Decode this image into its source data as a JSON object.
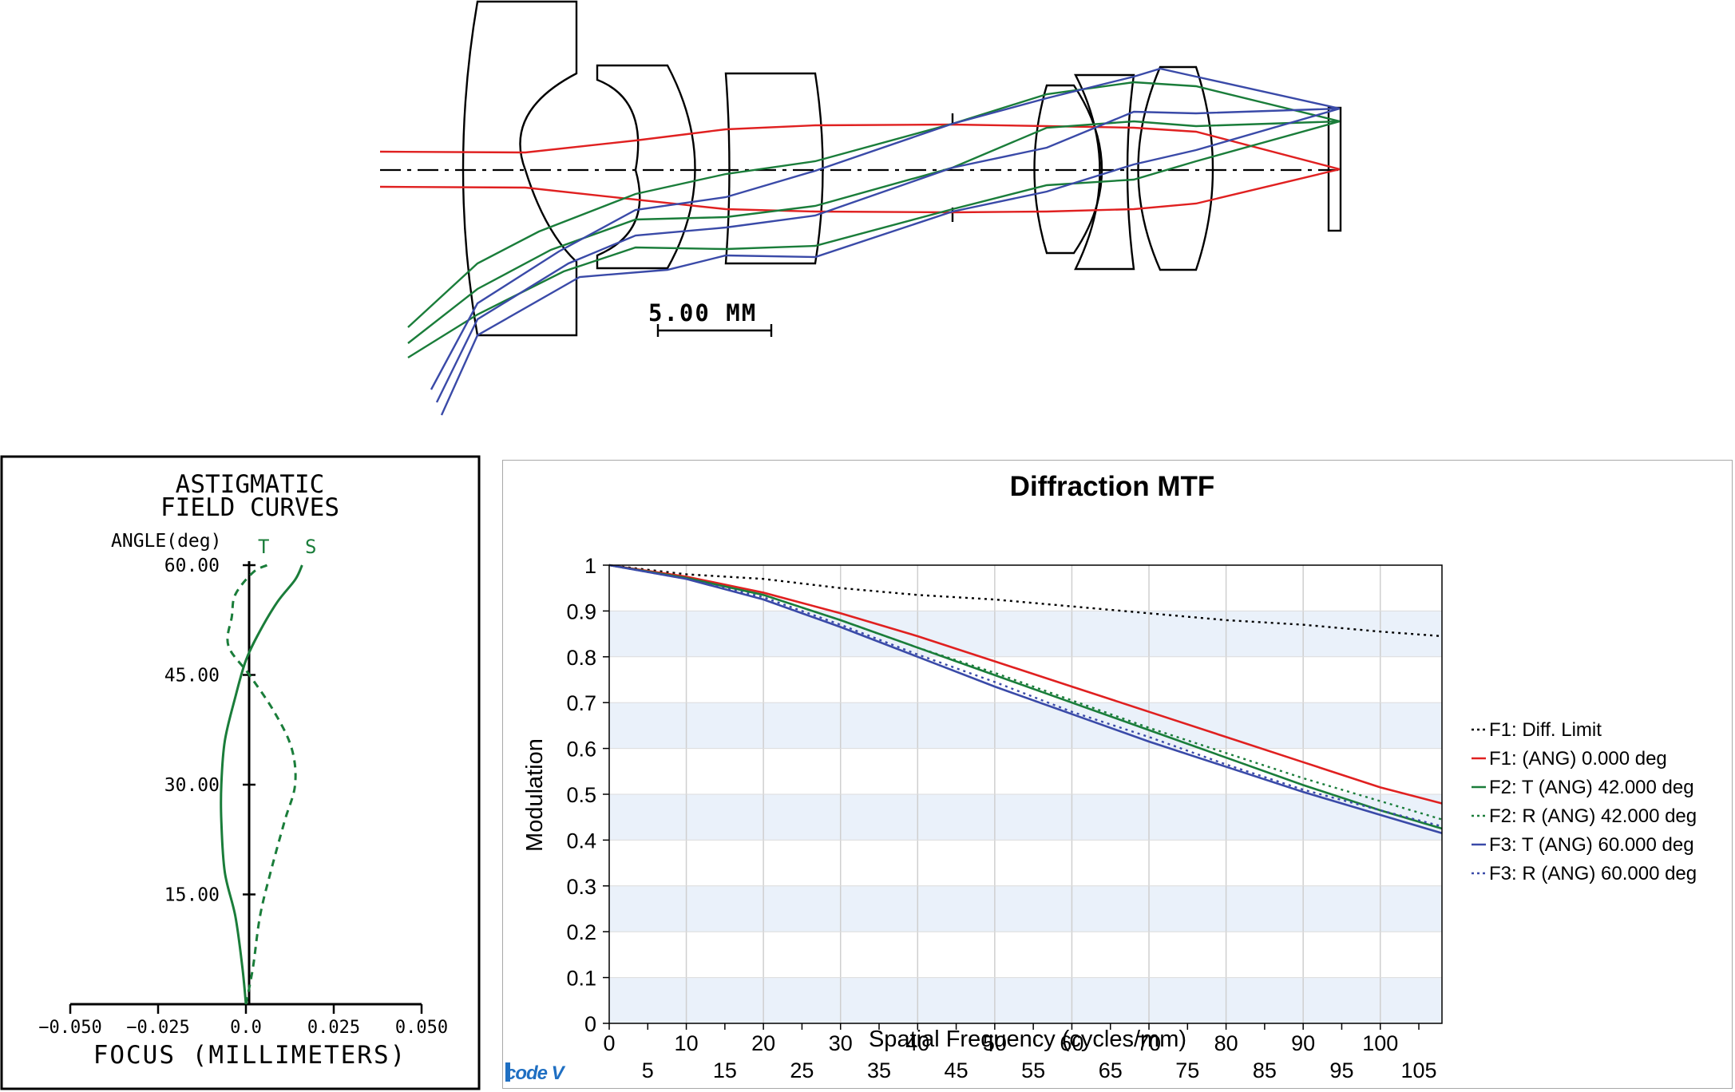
{
  "colors": {
    "red": "#e02020",
    "green": "#1a7d3a",
    "blue": "#3a4aa8",
    "black": "#000000",
    "band": "#eaf1fa",
    "grid": "#cfcfcf",
    "logo": "#1f6fc2"
  },
  "lens_diagram": {
    "scale_label": "5.00 MM"
  },
  "astig": {
    "title_line1": "ASTIGMATIC",
    "title_line2": "FIELD CURVES",
    "angle_label": "ANGLE(deg)",
    "t_label": "T",
    "s_label": "S",
    "y_ticks": [
      "60.00",
      "45.00",
      "30.00",
      "15.00"
    ],
    "x_ticks": [
      "−0.050",
      "−0.025",
      "0.0",
      "0.025",
      "0.050"
    ],
    "xlabel": "FOCUS (MILLIMETERS)"
  },
  "logo_text": "code V",
  "chart_data": [
    {
      "type": "line",
      "title": "Diffraction MTF",
      "xlabel": "Spatial Frequency (cycles/mm)",
      "ylabel": "Modulation",
      "xlim": [
        0,
        108
      ],
      "ylim": [
        0,
        1
      ],
      "x_ticks_top_row": [
        "0",
        "10",
        "20",
        "30",
        "40",
        "50",
        "60",
        "70",
        "80",
        "90",
        "100"
      ],
      "x_ticks_bottom_row": [
        "5",
        "15",
        "25",
        "35",
        "45",
        "55",
        "65",
        "75",
        "85",
        "95",
        "105"
      ],
      "y_ticks": [
        "0",
        "0.1",
        "0.2",
        "0.3",
        "0.4",
        "0.5",
        "0.6",
        "0.7",
        "0.8",
        "0.9",
        "1"
      ],
      "grid": true,
      "legend_position": "right",
      "x": [
        0,
        10,
        20,
        30,
        40,
        50,
        60,
        70,
        80,
        90,
        100,
        108
      ],
      "series": [
        {
          "name": "F1: Diff. Limit",
          "style": "dotted",
          "color": "#000000",
          "values": [
            1.0,
            0.98,
            0.97,
            0.95,
            0.935,
            0.925,
            0.91,
            0.895,
            0.88,
            0.87,
            0.855,
            0.845
          ]
        },
        {
          "name": "F1: (ANG) 0.000 deg",
          "style": "solid",
          "color": "#e02020",
          "values": [
            1.0,
            0.975,
            0.94,
            0.895,
            0.845,
            0.79,
            0.735,
            0.68,
            0.625,
            0.57,
            0.515,
            0.48
          ]
        },
        {
          "name": "F2: T (ANG) 42.000 deg",
          "style": "solid",
          "color": "#1a7d3a",
          "values": [
            1.0,
            0.972,
            0.935,
            0.88,
            0.82,
            0.76,
            0.7,
            0.64,
            0.58,
            0.52,
            0.465,
            0.425
          ]
        },
        {
          "name": "F2: R (ANG) 42.000 deg",
          "style": "dotted",
          "color": "#1a7d3a",
          "values": [
            1.0,
            0.972,
            0.935,
            0.88,
            0.82,
            0.765,
            0.705,
            0.645,
            0.59,
            0.535,
            0.485,
            0.445
          ]
        },
        {
          "name": "F3: T (ANG) 60.000 deg",
          "style": "solid",
          "color": "#3a4aa8",
          "values": [
            1.0,
            0.97,
            0.925,
            0.865,
            0.8,
            0.735,
            0.675,
            0.615,
            0.56,
            0.505,
            0.455,
            0.415
          ]
        },
        {
          "name": "F3: R (ANG) 60.000 deg",
          "style": "dotted",
          "color": "#3a4aa8",
          "values": [
            1.0,
            0.97,
            0.93,
            0.87,
            0.805,
            0.745,
            0.68,
            0.625,
            0.565,
            0.51,
            0.465,
            0.43
          ]
        }
      ]
    },
    {
      "type": "line",
      "title": "ASTIGMATIC FIELD CURVES",
      "xlabel": "FOCUS (MILLIMETERS)",
      "ylabel": "ANGLE(deg)",
      "xlim": [
        -0.05,
        0.05
      ],
      "ylim": [
        0,
        60
      ],
      "series": [
        {
          "name": "T",
          "style": "dashed",
          "color": "#1a7d3a",
          "points": [
            [
              0.0,
              0
            ],
            [
              0.002,
              5
            ],
            [
              0.004,
              12
            ],
            [
              0.007,
              18
            ],
            [
              0.011,
              25
            ],
            [
              0.014,
              30
            ],
            [
              0.013,
              35
            ],
            [
              0.008,
              40
            ],
            [
              0.001,
              45
            ],
            [
              -0.005,
              49
            ],
            [
              -0.004,
              53
            ],
            [
              -0.003,
              56
            ],
            [
              0.002,
              59
            ],
            [
              0.006,
              60
            ]
          ]
        },
        {
          "name": "S",
          "style": "solid",
          "color": "#1a7d3a",
          "points": [
            [
              0.0,
              0
            ],
            [
              -0.001,
              5
            ],
            [
              -0.003,
              12
            ],
            [
              -0.006,
              18
            ],
            [
              -0.007,
              25
            ],
            [
              -0.007,
              30
            ],
            [
              -0.006,
              36
            ],
            [
              -0.003,
              42
            ],
            [
              0.0,
              47
            ],
            [
              0.004,
              51
            ],
            [
              0.009,
              55
            ],
            [
              0.014,
              58
            ],
            [
              0.016,
              60
            ]
          ]
        }
      ]
    }
  ]
}
